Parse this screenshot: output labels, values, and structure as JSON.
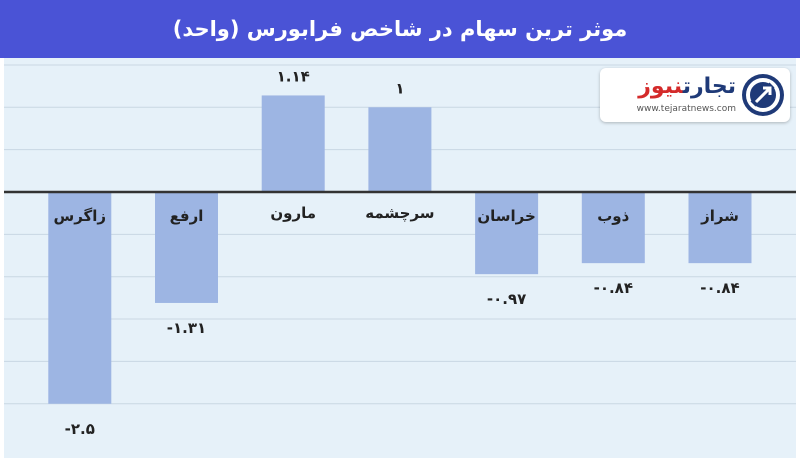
{
  "header": {
    "title": "موثر ترین سهام در شاخص فرابورس (واحد)"
  },
  "logo": {
    "name_part1": "تجارت",
    "name_part2": "نیوز",
    "url": "www.tejaratnews.com"
  },
  "colors": {
    "header_bg": "#4a53d6",
    "plot_bg": "#e6f1f9",
    "bar": "#9db5e3",
    "axis": "#333333",
    "grid": "#c9d7e3"
  },
  "chart_data": {
    "type": "bar",
    "title": "موثر ترین سهام در شاخص فرابورس (واحد)",
    "categories": [
      "شراز",
      "ذوب",
      "خراسان",
      "سرچشمه",
      "مارون",
      "ارفع",
      "زاگرس"
    ],
    "values": [
      -0.84,
      -0.84,
      -0.97,
      1,
      1.14,
      -1.31,
      -2.5
    ],
    "value_labels": [
      "-۰.۸۴",
      "-۰.۸۴",
      "-۰.۹۷",
      "۱",
      "۱.۱۴",
      "-۱.۳۱",
      "-۲.۵"
    ],
    "x_direction": "right-to-left",
    "ylim": [
      -2.5,
      1.5
    ],
    "grid": true,
    "legend": "none"
  }
}
